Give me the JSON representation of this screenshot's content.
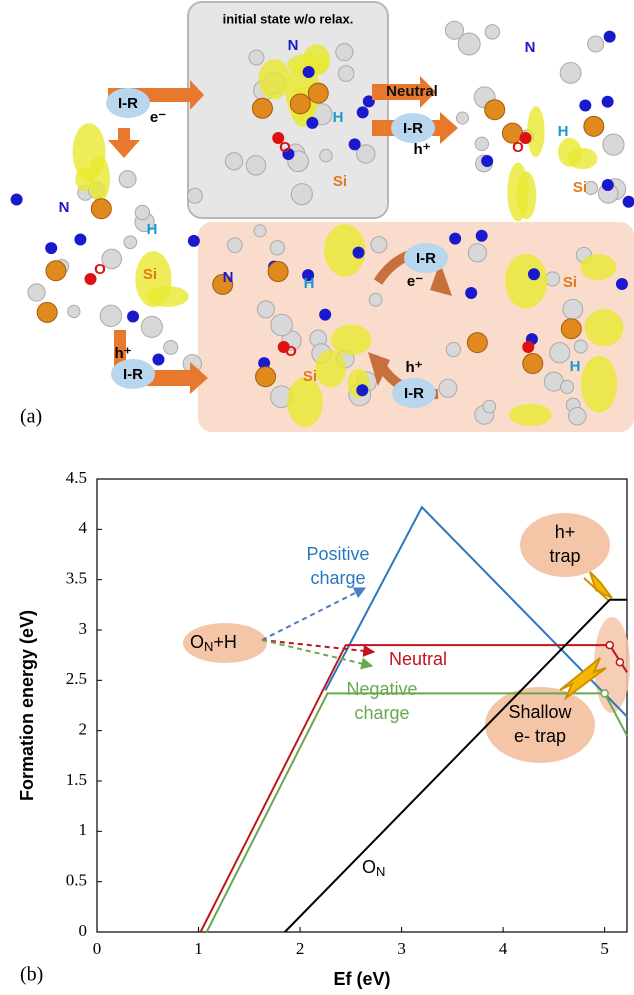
{
  "panel_a": {
    "panel_label": "(a)",
    "box_title": "initial state w/o relax.",
    "labels": [
      "N",
      "H",
      "O",
      "Si",
      "N",
      "H",
      "O",
      "Si",
      "N",
      "H",
      "O",
      "Si",
      "N",
      "H",
      "O",
      "Si",
      "Si",
      "H"
    ],
    "arrow_labels": [
      "Neutral"
    ],
    "bubbles": [
      {
        "text": "I-R",
        "charge": "e⁻"
      },
      {
        "text": "I-R",
        "charge": "h⁺"
      },
      {
        "text": "I-R",
        "charge": "e⁻"
      },
      {
        "text": "I-R",
        "charge": "h⁺"
      },
      {
        "text": "I-R",
        "charge": "h⁺"
      }
    ]
  },
  "chart_data": {
    "type": "line",
    "panel_label": "(b)",
    "xlabel": "Ef (eV)",
    "ylabel": "Formation energy (eV)",
    "xlim": [
      0,
      5.22
    ],
    "ylim": [
      0,
      4.5
    ],
    "xticks": [
      0,
      1,
      2,
      3,
      4,
      5
    ],
    "yticks": [
      0,
      0.5,
      1,
      1.5,
      2,
      2.5,
      3,
      3.5,
      4,
      4.5
    ],
    "series": [
      {
        "color": "#2878c0",
        "x": [
          2.25,
          3.2,
          5.22
        ],
        "values": [
          2.4,
          4.22,
          2.14
        ]
      },
      {
        "color": "#c0141e",
        "x": [
          1.02,
          2.45,
          5.05,
          5.22
        ],
        "values": [
          0,
          2.85,
          2.85,
          2.58
        ],
        "markers": {
          "x": [
            5.05,
            5.15
          ],
          "values": [
            2.85,
            2.68
          ]
        }
      },
      {
        "color": "#6aa84f",
        "x": [
          1.08,
          2.27,
          5.0,
          5.22
        ],
        "values": [
          0,
          2.37,
          2.37,
          1.95
        ],
        "markers": {
          "x": [
            5.0
          ],
          "values": [
            2.37
          ]
        }
      },
      {
        "color": "#000000",
        "x": [
          1.85,
          5.05,
          5.22
        ],
        "values": [
          0,
          3.3,
          3.3
        ]
      }
    ],
    "annotations": {
      "positive": [
        "Positive",
        "charge"
      ],
      "neutral": [
        "Neutral"
      ],
      "negative": [
        "Negative",
        "charge"
      ],
      "defect_h": [
        "O",
        "N",
        "+H"
      ],
      "defect": [
        "O",
        "N"
      ],
      "hole_trap": [
        "h+",
        "trap"
      ],
      "electron_trap": [
        "Shallow",
        "e- trap"
      ]
    }
  }
}
